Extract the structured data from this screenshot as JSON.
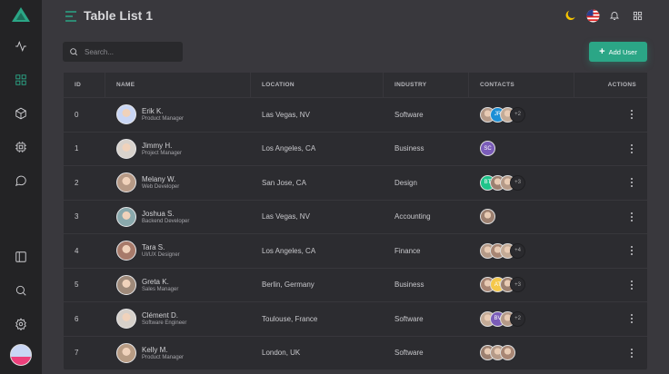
{
  "header": {
    "title": "Table List 1"
  },
  "colors": {
    "accent": "#2ba686",
    "sidebar": "#232325",
    "background": "#39383d",
    "table": "#2c2c30"
  },
  "sidebar": {
    "items": [
      {
        "icon": "activity-icon"
      },
      {
        "icon": "grid-icon",
        "active": true
      },
      {
        "icon": "cube-icon"
      },
      {
        "icon": "cpu-icon"
      },
      {
        "icon": "chat-icon"
      },
      {
        "icon": "layout-icon"
      },
      {
        "icon": "search-icon"
      },
      {
        "icon": "settings-icon"
      }
    ]
  },
  "toolbar": {
    "search_placeholder": "Search...",
    "add_user_label": "Add User"
  },
  "table": {
    "columns": [
      "ID",
      "NAME",
      "LOCATION",
      "INDUSTRY",
      "CONTACTS",
      "ACTIONS"
    ],
    "rows": [
      {
        "id": "0",
        "name": "Erik K.",
        "role": "Product Manager",
        "location": "Las Vegas, NV",
        "industry": "Software",
        "contacts": [
          {
            "type": "photo"
          },
          {
            "type": "initials",
            "text": "JR",
            "color": "#1c8fd6"
          },
          {
            "type": "photo"
          }
        ],
        "more": "+2",
        "avatar": "#c9d6f5"
      },
      {
        "id": "1",
        "name": "Jimmy H.",
        "role": "Project Manager",
        "location": "Los Angeles, CA",
        "industry": "Business",
        "contacts": [
          {
            "type": "initials",
            "text": "SC",
            "color": "#7a5cb8"
          }
        ],
        "more": "",
        "avatar": "#d8d2cc"
      },
      {
        "id": "2",
        "name": "Melany W.",
        "role": "Web Developer",
        "location": "San Jose, CA",
        "industry": "Design",
        "contacts": [
          {
            "type": "initials",
            "text": "BT",
            "color": "#1fc48a"
          },
          {
            "type": "photo"
          },
          {
            "type": "photo"
          }
        ],
        "more": "+3",
        "avatar": "#b79a86"
      },
      {
        "id": "3",
        "name": "Joshua S.",
        "role": "Backend Developer",
        "location": "Las Vegas, NV",
        "industry": "Accounting",
        "contacts": [
          {
            "type": "photo"
          }
        ],
        "more": "",
        "avatar": "#8aa9ad"
      },
      {
        "id": "4",
        "name": "Tara S.",
        "role": "UI/UX Designer",
        "location": "Los Angeles, CA",
        "industry": "Finance",
        "contacts": [
          {
            "type": "photo"
          },
          {
            "type": "photo"
          },
          {
            "type": "photo"
          }
        ],
        "more": "+4",
        "avatar": "#a77a6a"
      },
      {
        "id": "5",
        "name": "Greta K.",
        "role": "Sales Manager",
        "location": "Berlin, Germany",
        "industry": "Business",
        "contacts": [
          {
            "type": "photo"
          },
          {
            "type": "initials",
            "text": "AT",
            "color": "#f5c84a"
          },
          {
            "type": "photo"
          }
        ],
        "more": "+3",
        "avatar": "#9f8a7a"
      },
      {
        "id": "6",
        "name": "Clément D.",
        "role": "Software Engineer",
        "location": "Toulouse, France",
        "industry": "Software",
        "contacts": [
          {
            "type": "photo"
          },
          {
            "type": "initials",
            "text": "BV",
            "color": "#7a5cb8"
          },
          {
            "type": "photo"
          }
        ],
        "more": "+2",
        "avatar": "#d6d0ca"
      },
      {
        "id": "7",
        "name": "Kelly M.",
        "role": "Product Manager",
        "location": "London, UK",
        "industry": "Software",
        "contacts": [
          {
            "type": "photo"
          },
          {
            "type": "photo"
          },
          {
            "type": "photo"
          }
        ],
        "more": "",
        "avatar": "#b89c84"
      }
    ]
  }
}
